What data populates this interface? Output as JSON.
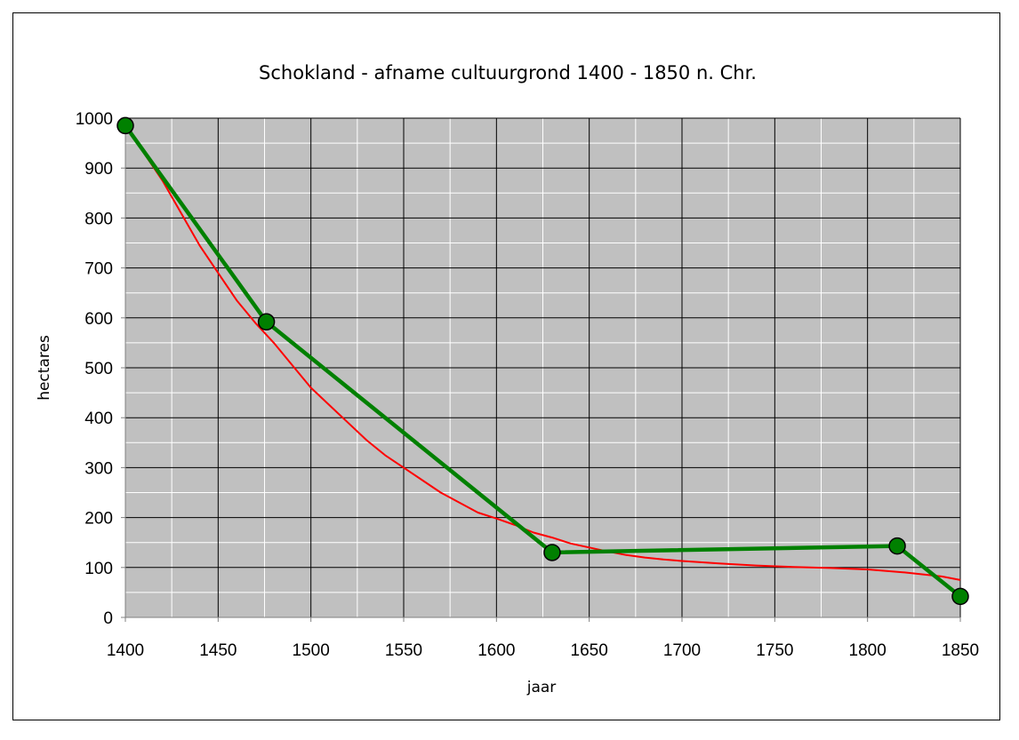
{
  "chart_data": {
    "type": "line",
    "title": "Schokland - afname cultuurgrond 1400 - 1850 n. Chr.",
    "xlabel": "jaar",
    "ylabel": "hectares",
    "xlim": [
      1400,
      1850
    ],
    "ylim": [
      0,
      1000
    ],
    "xticks": [
      1400,
      1450,
      1500,
      1550,
      1600,
      1650,
      1700,
      1750,
      1800,
      1850
    ],
    "yticks": [
      0,
      100,
      200,
      300,
      400,
      500,
      600,
      700,
      800,
      900,
      1000
    ],
    "x_minor_step": 25,
    "y_minor_step": 50,
    "plot_background": "#c0c0c0",
    "grid": true,
    "legend": "none",
    "series": [
      {
        "color": "#008000",
        "markers": true,
        "x": [
          1400,
          1476,
          1630,
          1816,
          1850
        ],
        "y": [
          985,
          592,
          130,
          143,
          42
        ]
      },
      {
        "color": "#ff0000",
        "markers": false,
        "x": [
          1400,
          1410,
          1420,
          1430,
          1440,
          1450,
          1460,
          1470,
          1480,
          1490,
          1500,
          1510,
          1520,
          1530,
          1540,
          1550,
          1560,
          1570,
          1580,
          1590,
          1600,
          1610,
          1620,
          1630,
          1640,
          1650,
          1660,
          1670,
          1680,
          1690,
          1700,
          1720,
          1740,
          1760,
          1780,
          1800,
          1820,
          1840,
          1850
        ],
        "y": [
          985,
          930,
          875,
          810,
          745,
          690,
          635,
          590,
          550,
          505,
          460,
          425,
          390,
          355,
          325,
          300,
          275,
          250,
          230,
          210,
          198,
          185,
          170,
          160,
          148,
          140,
          132,
          125,
          120,
          116,
          113,
          108,
          104,
          101,
          99,
          96,
          90,
          82,
          75
        ]
      }
    ]
  }
}
